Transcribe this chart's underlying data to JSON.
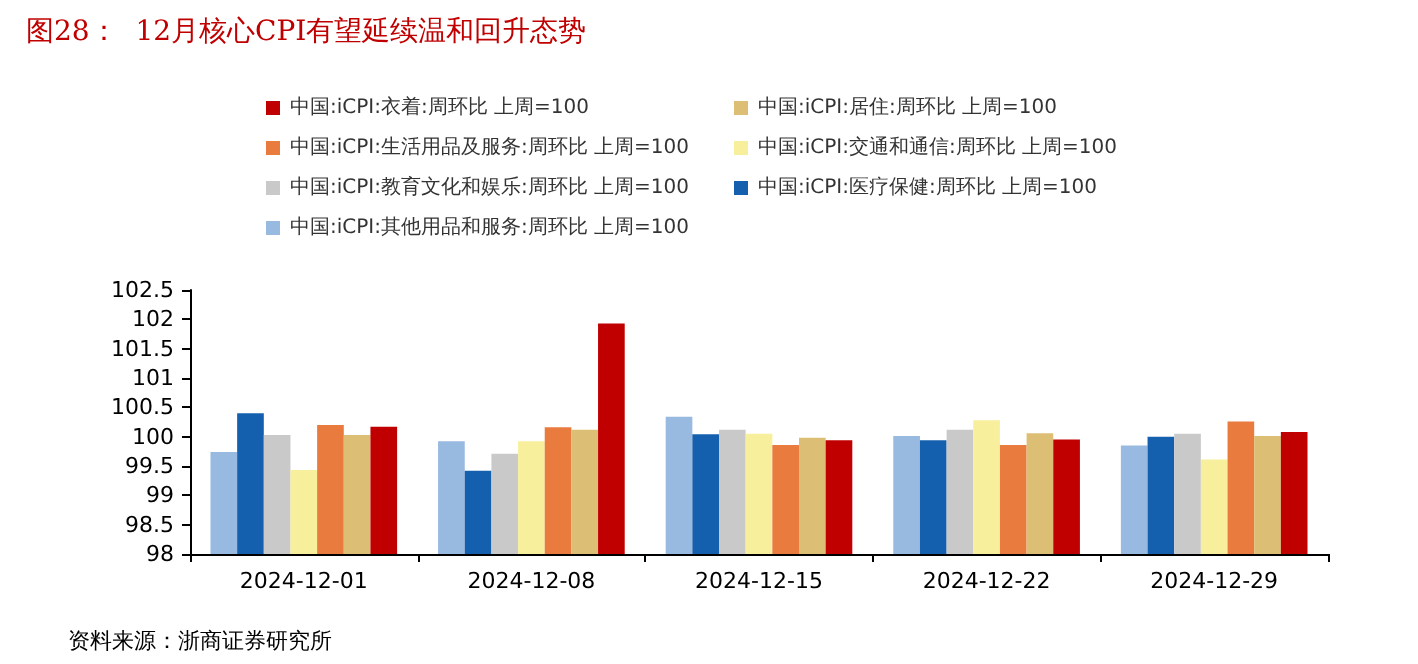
{
  "chart_data": {
    "type": "bar",
    "title": "图28：  12月核心CPI有望延续温和回升态势",
    "categories": [
      "2024-12-01",
      "2024-12-08",
      "2024-12-15",
      "2024-12-22",
      "2024-12-29"
    ],
    "series": [
      {
        "name": "中国:iCPI:衣着:周环比 上周=100",
        "color": "#c00000",
        "values": [
          100.17,
          101.93,
          99.94,
          99.95,
          100.08
        ]
      },
      {
        "name": "中国:iCPI:居住:周环比 上周=100",
        "color": "#dcbf74",
        "values": [
          100.03,
          100.12,
          99.98,
          100.06,
          100.01
        ]
      },
      {
        "name": "中国:iCPI:生活用品及服务:周环比 上周=100",
        "color": "#e97b3f",
        "values": [
          100.2,
          100.16,
          99.86,
          99.86,
          100.26
        ]
      },
      {
        "name": "中国:iCPI:交通和通信:周环比 上周=100",
        "color": "#f8ef9c",
        "values": [
          99.43,
          99.92,
          100.05,
          100.28,
          99.61
        ]
      },
      {
        "name": "中国:iCPI:教育文化和娱乐:周环比 上周=100",
        "color": "#c9c9c9",
        "values": [
          100.03,
          99.71,
          100.12,
          100.12,
          100.05
        ]
      },
      {
        "name": "中国:iCPI:医疗保健:周环比 上周=100",
        "color": "#1460ae",
        "values": [
          100.4,
          99.42,
          100.04,
          99.94,
          100
        ]
      },
      {
        "name": "中国:iCPI:其他用品和服务:周环比 上周=100",
        "color": "#98b9e0",
        "values": [
          99.74,
          99.92,
          100.34,
          100.01,
          99.85
        ]
      }
    ],
    "ylim": [
      98,
      102.5
    ],
    "yticks": [
      98,
      98.5,
      99,
      99.5,
      100,
      100.5,
      101,
      101.5,
      102,
      102.5
    ],
    "grid": false,
    "legend": "top",
    "annotations": [
      "资料来源：浙商证券研究所"
    ]
  }
}
